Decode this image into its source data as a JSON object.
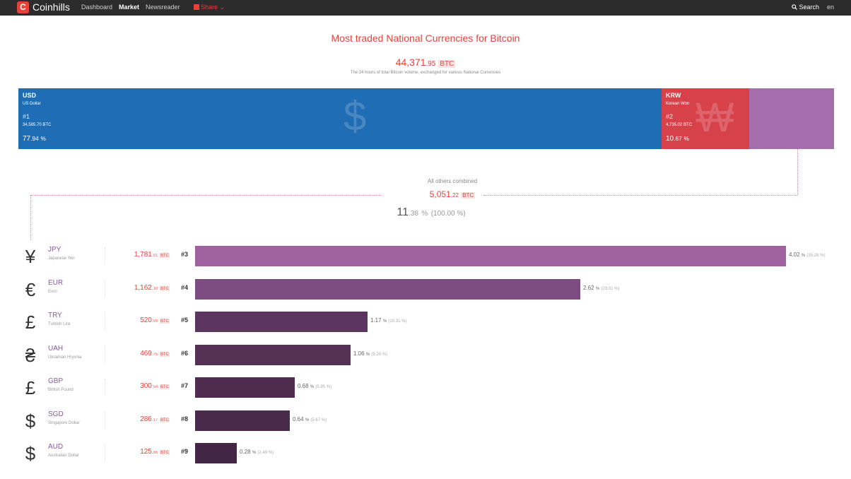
{
  "nav": {
    "logo_letter": "C",
    "brand": "Coinhills",
    "items": [
      {
        "label": "Dashboard",
        "active": false
      },
      {
        "label": "Market",
        "active": true
      },
      {
        "label": "Newsreader",
        "active": false
      }
    ],
    "share": "Share",
    "share_caret": "⌄",
    "search": "Search",
    "lang": "en"
  },
  "header": {
    "title": "Most traded National Currencies for Bitcoin",
    "total_int": "44,371",
    "total_dec": ".95",
    "total_unit": "BTC",
    "description": "The 24 hours of total Bitcoin volume, exchanged for various National Currencies"
  },
  "treemap": [
    {
      "code": "USD",
      "name": "US Dollar",
      "rank": "#1",
      "vol_int": "34,585",
      "vol_dec": ".70",
      "unit": "BTC",
      "pct_int": "77",
      "pct_dec": ".94",
      "pct_unit": "%",
      "symbol": "$",
      "share": 77.94,
      "color": "#1f6db4"
    },
    {
      "code": "KRW",
      "name": "Korean Won",
      "rank": "#2",
      "vol_int": "4,735",
      "vol_dec": ".02",
      "unit": "BTC",
      "pct_int": "10",
      "pct_dec": ".67",
      "pct_unit": "%",
      "symbol": "₩",
      "share": 10.67,
      "color": "#d7414a"
    }
  ],
  "others": {
    "label": "All others combined",
    "vol_int": "5,051",
    "vol_dec": ".22",
    "unit": "BTC",
    "pct_int": "11",
    "pct_dec": ".38",
    "pct_unit": "%",
    "pct_total": "(100.00 %)",
    "color": "#a46fac"
  },
  "currencies": [
    {
      "symbol": "¥",
      "code": "JPY",
      "name": "Japanese Yen",
      "vol_int": "1,781",
      "vol_dec": ".91",
      "unit": "BTC",
      "rank": "#3",
      "pct": "4.02",
      "rel": "(35.28 %)",
      "relative_share": 35.28,
      "color": "#a0629f"
    },
    {
      "symbol": "€",
      "code": "EUR",
      "name": "Euro",
      "vol_int": "1,162",
      "vol_dec": ".10",
      "unit": "BTC",
      "rank": "#4",
      "pct": "2.62",
      "rel": "(23.01 %)",
      "relative_share": 23.01,
      "color": "#7c4b80"
    },
    {
      "symbol": "£",
      "code": "TRY",
      "name": "Turkish Lira",
      "vol_int": "520",
      "vol_dec": ".99",
      "unit": "BTC",
      "rank": "#5",
      "pct": "1.17",
      "rel": "(10.31 %)",
      "relative_share": 10.31,
      "color": "#5c3460"
    },
    {
      "symbol": "₴",
      "code": "UAH",
      "name": "Ukrainian Hryvnia",
      "vol_int": "469",
      "vol_dec": ".75",
      "unit": "BTC",
      "rank": "#6",
      "pct": "1.06",
      "rel": "(9.30 %)",
      "relative_share": 9.3,
      "color": "#553055"
    },
    {
      "symbol": "£",
      "code": "GBP",
      "name": "British Pound",
      "vol_int": "300",
      "vol_dec": ".54",
      "unit": "BTC",
      "rank": "#7",
      "pct": "0.68",
      "rel": "(5.95 %)",
      "relative_share": 5.95,
      "color": "#4e2c50"
    },
    {
      "symbol": "$",
      "code": "SGD",
      "name": "Singapore Dollar",
      "vol_int": "286",
      "vol_dec": ".17",
      "unit": "BTC",
      "rank": "#8",
      "pct": "0.64",
      "rel": "(5.67 %)",
      "relative_share": 5.67,
      "color": "#4a2a4c"
    },
    {
      "symbol": "$",
      "code": "AUD",
      "name": "Australian Dollar",
      "vol_int": "125",
      "vol_dec": ".86",
      "unit": "BTC",
      "rank": "#9",
      "pct": "0.28",
      "rel": "(2.49 %)",
      "relative_share": 2.49,
      "color": "#432646"
    }
  ]
}
